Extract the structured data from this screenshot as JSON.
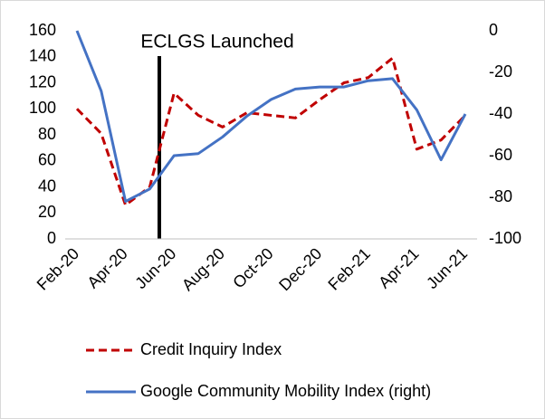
{
  "chart_data": {
    "type": "line",
    "annotation": "ECLGS Launched",
    "categories": [
      "Feb-20",
      null,
      "Apr-20",
      null,
      "Jun-20",
      null,
      "Aug-20",
      null,
      "Oct-20",
      null,
      "Dec-20",
      null,
      "Feb-21",
      null,
      "Apr-21",
      null,
      "Jun-21"
    ],
    "series": [
      {
        "name": "Credit Inquiry Index",
        "color": "#c00000",
        "dash": true,
        "values": [
          100,
          81,
          26,
          40,
          112,
          95,
          86,
          97,
          95,
          93,
          107,
          120,
          124,
          139,
          69,
          76,
          95
        ]
      },
      {
        "name": "Google Community Mobility Index (right)",
        "color": "#4472c4",
        "axis": "y2",
        "values": [
          0,
          -29,
          -82,
          -76,
          -60,
          -59,
          -51,
          -41,
          -33,
          -28,
          -27,
          -27,
          -24,
          -23,
          -38,
          -62,
          -40
        ]
      }
    ],
    "ylim": [
      0,
      160
    ],
    "yticks": [
      0,
      20,
      40,
      60,
      80,
      100,
      120,
      140,
      160
    ],
    "y2lim": [
      -100,
      0
    ],
    "y2ticks": [
      -100,
      -80,
      -60,
      -40,
      -20,
      0
    ],
    "legend": "bottom"
  }
}
